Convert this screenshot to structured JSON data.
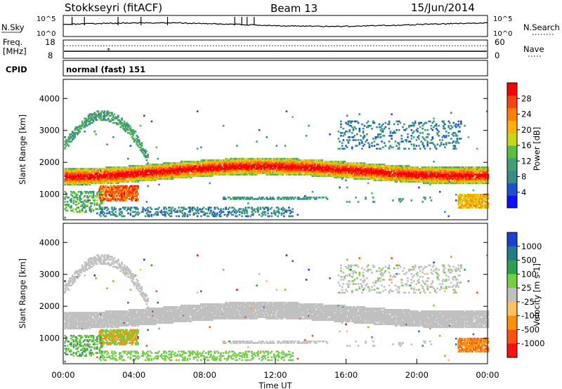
{
  "header": {
    "station": "Stokkseyri (fitACF)",
    "beam": "Beam 13",
    "date": "15/Jun/2014"
  },
  "nsky_panel": {
    "left_label": "N.Sky",
    "left_ticks": [
      "10^5",
      "10^0"
    ],
    "right_label": "N.Search",
    "right_ticks": [
      "10^5",
      "10^0"
    ]
  },
  "freq_panel": {
    "label_line1": "Freq.",
    "label_line2": "[MHz]",
    "left_ticks": [
      "18",
      "8"
    ],
    "right_label": "Nave",
    "right_ticks": [
      "60",
      "0"
    ]
  },
  "cpid": {
    "label": "CPID",
    "value": "normal (fast) 151"
  },
  "chart_data": [
    {
      "type": "heatmap",
      "name": "power",
      "ylabel": "Slant Range [km]",
      "xlabel": "",
      "xlim": [
        0,
        24
      ],
      "ylim": [
        200,
        4600
      ],
      "y_ticks": [
        "1000",
        "2000",
        "3000",
        "4000"
      ],
      "y_tick_values": [
        1000,
        2000,
        3000,
        4000
      ],
      "colorbar": {
        "label": "Power [dB]",
        "tick_labels": [
          "4",
          "8",
          "12",
          "16",
          "20",
          "24",
          "28"
        ],
        "colors": [
          "#1010ff",
          "#2050d0",
          "#3a8a8a",
          "#40a070",
          "#58c040",
          "#c8d810",
          "#ffb000",
          "#ff8000",
          "#ff4010",
          "#ff0000"
        ]
      }
    },
    {
      "type": "heatmap",
      "name": "velocity",
      "ylabel": "Slant Range [km]",
      "xlabel": "Time UT",
      "xlim": [
        0,
        24
      ],
      "ylim": [
        200,
        4600
      ],
      "y_ticks": [
        "1000",
        "2000",
        "3000",
        "4000"
      ],
      "y_tick_values": [
        1000,
        2000,
        3000,
        4000
      ],
      "x_ticks": [
        "00:00",
        "04:00",
        "08:00",
        "12:00",
        "16:00",
        "20:00",
        "00:00"
      ],
      "x_tick_values": [
        0,
        4,
        8,
        12,
        16,
        20,
        24
      ],
      "colorbar": {
        "label": "Velocity [m s-1]",
        "tick_labels": [
          "1000",
          "500",
          "100",
          "25",
          "-25",
          "-100",
          "-500",
          "-1000"
        ],
        "colors": [
          "#1a40d0",
          "#207a8a",
          "#2aa050",
          "#70d040",
          "#c0c0c0",
          "#ffc060",
          "#ff9000",
          "#ff5010",
          "#ff1010"
        ]
      }
    }
  ]
}
